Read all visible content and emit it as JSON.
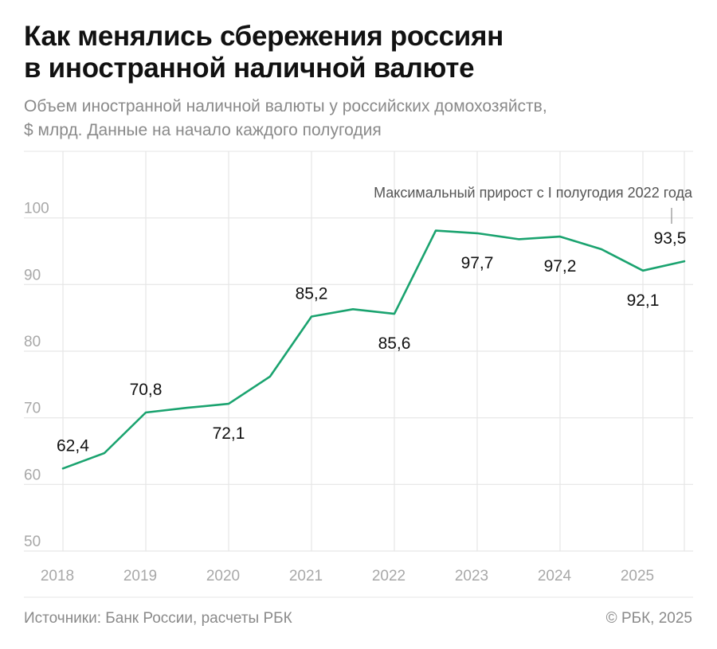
{
  "header": {
    "title_line1": "Как менялись сбережения россиян",
    "title_line2": "в иностранной наличной валюте",
    "subtitle_line1": "Объем иностранной наличной валюты у российских домохозяйств,",
    "subtitle_line2": "$ млрд. Данные на начало каждого полугодия"
  },
  "footer": {
    "source": "Источники: Банк России, расчеты РБК",
    "copyright": "© РБК, 2025"
  },
  "colors": {
    "line": "#1aa36f",
    "grid": "#e6e6e6",
    "axis_text": "#a8a8a8",
    "label_text": "#111111",
    "annotation_text": "#555555"
  },
  "chart_data": {
    "type": "line",
    "x_tick_labels": [
      "2018",
      "2019",
      "2020",
      "2021",
      "2022",
      "2023",
      "2024",
      "2025"
    ],
    "y_tick_labels": [
      "50",
      "60",
      "70",
      "80",
      "90",
      "100"
    ],
    "ylim": [
      50,
      110
    ],
    "grid": true,
    "series": [
      {
        "x": [
          "I пол. 2018",
          "II пол. 2018",
          "I пол. 2019",
          "II пол. 2019",
          "I пол. 2020",
          "II пол. 2020",
          "I пол. 2021",
          "II пол. 2021",
          "I пол. 2022",
          "II пол. 2022",
          "I пол. 2023",
          "II пол. 2023",
          "I пол. 2024",
          "II пол. 2024",
          "I пол. 2025",
          "II пол. 2025"
        ],
        "values": [
          62.4,
          64.7,
          70.8,
          71.5,
          72.1,
          76.2,
          85.2,
          86.3,
          85.6,
          98.1,
          97.7,
          96.8,
          97.2,
          95.3,
          92.1,
          93.5
        ]
      }
    ],
    "data_labels": [
      {
        "index": 0,
        "text": "62,4",
        "placement": "above"
      },
      {
        "index": 2,
        "text": "70,8",
        "placement": "above"
      },
      {
        "index": 4,
        "text": "72,1",
        "placement": "below"
      },
      {
        "index": 6,
        "text": "85,2",
        "placement": "above"
      },
      {
        "index": 8,
        "text": "85,6",
        "placement": "below"
      },
      {
        "index": 10,
        "text": "97,7",
        "placement": "below"
      },
      {
        "index": 12,
        "text": "97,2",
        "placement": "below"
      },
      {
        "index": 14,
        "text": "92,1",
        "placement": "below"
      },
      {
        "index": 15,
        "text": "93,5",
        "placement": "above"
      }
    ],
    "annotation": {
      "text": "Максимальный прирост с I полугодия 2022 года",
      "index": 15
    }
  }
}
